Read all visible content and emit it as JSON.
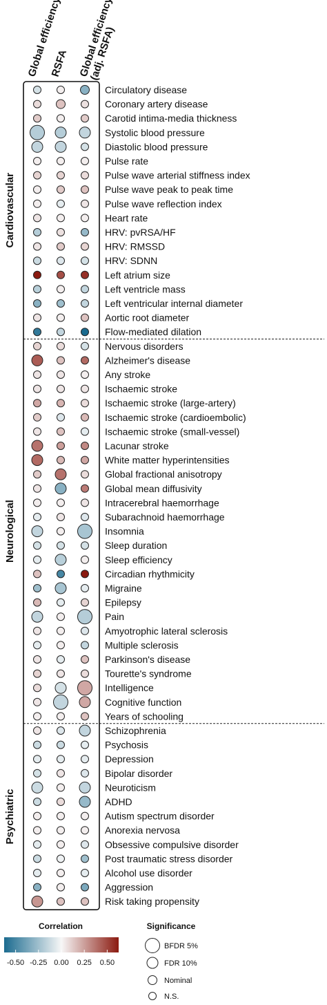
{
  "chart_data": {
    "type": "bubble-heatmap",
    "columns": [
      "Global efficiency",
      "RSFA",
      "Global efficiency\n(adj. RSFA)"
    ],
    "groups": [
      {
        "name": "Cardiovascular",
        "rows": [
          {
            "label": "Circulatory disease",
            "values": [
              -0.08,
              0.02,
              -0.25
            ],
            "sig": [
              0,
              0,
              1
            ]
          },
          {
            "label": "Coronary artery disease",
            "values": [
              0.06,
              0.12,
              0.05
            ],
            "sig": [
              0,
              1,
              0
            ]
          },
          {
            "label": "Carotid intima-media thickness",
            "values": [
              0.1,
              0.02,
              0.1
            ],
            "sig": [
              0,
              0,
              0
            ]
          },
          {
            "label": "Systolic blood pressure",
            "values": [
              -0.15,
              -0.15,
              -0.12
            ],
            "sig": [
              3,
              2,
              2
            ]
          },
          {
            "label": "Diastolic blood pressure",
            "values": [
              -0.12,
              -0.12,
              -0.08
            ],
            "sig": [
              2,
              2,
              0
            ]
          },
          {
            "label": "Pulse rate",
            "values": [
              0.02,
              0.02,
              0.02
            ],
            "sig": [
              0,
              0,
              0
            ]
          },
          {
            "label": "Pulse wave arterial stiffness index",
            "values": [
              0.08,
              0.08,
              0.06
            ],
            "sig": [
              0,
              0,
              0
            ]
          },
          {
            "label": "Pulse wave peak to peak time",
            "values": [
              0.02,
              0.1,
              0.12
            ],
            "sig": [
              0,
              0,
              0
            ]
          },
          {
            "label": "Pulse wave reflection index",
            "values": [
              0.02,
              -0.04,
              0.04
            ],
            "sig": [
              0,
              0,
              0
            ]
          },
          {
            "label": "Heart rate",
            "values": [
              0.04,
              0.02,
              0.02
            ],
            "sig": [
              0,
              0,
              0
            ]
          },
          {
            "label": "HRV: pvRSA/HF",
            "values": [
              -0.15,
              0.05,
              -0.22
            ],
            "sig": [
              0,
              0,
              0
            ]
          },
          {
            "label": "HRV: RMSSD",
            "values": [
              0.04,
              0.1,
              0.08
            ],
            "sig": [
              0,
              0,
              0
            ]
          },
          {
            "label": "HRV: SDNN",
            "values": [
              -0.1,
              -0.06,
              -0.08
            ],
            "sig": [
              0,
              0,
              0
            ]
          },
          {
            "label": "Left atrium size",
            "values": [
              0.5,
              0.38,
              0.45
            ],
            "sig": [
              0,
              0,
              0
            ]
          },
          {
            "label": "Left ventricle mass",
            "values": [
              -0.14,
              0.02,
              -0.12
            ],
            "sig": [
              0,
              0,
              0
            ]
          },
          {
            "label": "Left ventricular internal diameter",
            "values": [
              -0.25,
              -0.2,
              -0.12
            ],
            "sig": [
              0,
              0,
              0
            ]
          },
          {
            "label": "Aortic root diameter",
            "values": [
              0.04,
              0.02,
              0.12
            ],
            "sig": [
              0,
              0,
              0
            ]
          },
          {
            "label": "Flow-mediated dilation",
            "values": [
              -0.45,
              -0.12,
              -0.55
            ],
            "sig": [
              0,
              0,
              0
            ]
          }
        ]
      },
      {
        "name": "Neurological",
        "rows": [
          {
            "label": "Nervous disorders",
            "values": [
              0.08,
              0.06,
              -0.08
            ],
            "sig": [
              0,
              0,
              0
            ]
          },
          {
            "label": "Alzheimer's disease",
            "values": [
              0.35,
              0.12,
              0.32
            ],
            "sig": [
              2,
              0,
              0
            ]
          },
          {
            "label": "Any stroke",
            "values": [
              0.04,
              0.04,
              0.02
            ],
            "sig": [
              0,
              0,
              0
            ]
          },
          {
            "label": "Ischaemic stroke",
            "values": [
              0.04,
              0.04,
              0.04
            ],
            "sig": [
              0,
              0,
              0
            ]
          },
          {
            "label": "Ischaemic stroke (large-artery)",
            "values": [
              0.18,
              0.15,
              0.06
            ],
            "sig": [
              0,
              0,
              0
            ]
          },
          {
            "label": "Ischaemic stroke (cardioembolic)",
            "values": [
              0.1,
              -0.06,
              0.14
            ],
            "sig": [
              0,
              0,
              0
            ]
          },
          {
            "label": "Ischaemic stroke (small-vessel)",
            "values": [
              0.04,
              0.12,
              -0.04
            ],
            "sig": [
              0,
              0,
              0
            ]
          },
          {
            "label": "Lacunar stroke",
            "values": [
              0.3,
              0.2,
              0.25
            ],
            "sig": [
              2,
              0,
              0
            ]
          },
          {
            "label": "White matter hyperintensities",
            "values": [
              0.32,
              0.14,
              0.18
            ],
            "sig": [
              2,
              0,
              0
            ]
          },
          {
            "label": "Global fractional anisotropy",
            "values": [
              0.1,
              0.3,
              0.06
            ],
            "sig": [
              0,
              2,
              0
            ]
          },
          {
            "label": "Global mean diffusivity",
            "values": [
              0.04,
              -0.25,
              0.28
            ],
            "sig": [
              0,
              2,
              0
            ]
          },
          {
            "label": "Intracerebral haemorrhage",
            "values": [
              0.02,
              0.02,
              0.04
            ],
            "sig": [
              0,
              0,
              0
            ]
          },
          {
            "label": "Subarachnoid haemorrhage",
            "values": [
              -0.04,
              0.04,
              -0.06
            ],
            "sig": [
              0,
              0,
              0
            ]
          },
          {
            "label": "Insomnia",
            "values": [
              -0.12,
              0.02,
              -0.18
            ],
            "sig": [
              2,
              0,
              3
            ]
          },
          {
            "label": "Sleep duration",
            "values": [
              -0.08,
              -0.08,
              -0.08
            ],
            "sig": [
              0,
              0,
              0
            ]
          },
          {
            "label": "Sleep efficiency",
            "values": [
              -0.04,
              -0.14,
              0.02
            ],
            "sig": [
              0,
              2,
              0
            ]
          },
          {
            "label": "Circadian rhythmicity",
            "values": [
              0.12,
              -0.4,
              0.52
            ],
            "sig": [
              0,
              0,
              0
            ]
          },
          {
            "label": "Migraine",
            "values": [
              -0.2,
              -0.18,
              -0.04
            ],
            "sig": [
              0,
              2,
              0
            ]
          },
          {
            "label": "Epilepsy",
            "values": [
              0.14,
              -0.04,
              0.08
            ],
            "sig": [
              0,
              0,
              0
            ]
          },
          {
            "label": "Pain",
            "values": [
              -0.12,
              0.02,
              -0.15
            ],
            "sig": [
              2,
              0,
              3
            ]
          },
          {
            "label": "Amyotrophic lateral sclerosis",
            "values": [
              0.04,
              0.02,
              -0.06
            ],
            "sig": [
              0,
              0,
              0
            ]
          },
          {
            "label": "Multiple sclerosis",
            "values": [
              -0.04,
              0.02,
              -0.12
            ],
            "sig": [
              0,
              0,
              0
            ]
          },
          {
            "label": "Parkinson's disease",
            "values": [
              0.04,
              -0.04,
              0.12
            ],
            "sig": [
              0,
              0,
              0
            ]
          },
          {
            "label": "Tourette's syndrome",
            "values": [
              0.08,
              0.04,
              0.06
            ],
            "sig": [
              0,
              0,
              0
            ]
          },
          {
            "label": "Intelligence",
            "values": [
              0.06,
              -0.08,
              0.18
            ],
            "sig": [
              0,
              2,
              3
            ]
          },
          {
            "label": "Cognitive function",
            "values": [
              0.04,
              -0.12,
              0.18
            ],
            "sig": [
              0,
              3,
              2
            ]
          },
          {
            "label": "Years of schooling",
            "values": [
              0.02,
              0.02,
              0.12
            ],
            "sig": [
              0,
              0,
              0
            ]
          }
        ]
      },
      {
        "name": "Psychiatric",
        "rows": [
          {
            "label": "Schizophrenia",
            "values": [
              0.04,
              -0.06,
              -0.12
            ],
            "sig": [
              0,
              0,
              2
            ]
          },
          {
            "label": "Psychosis",
            "values": [
              -0.1,
              -0.1,
              -0.04
            ],
            "sig": [
              0,
              0,
              0
            ]
          },
          {
            "label": "Depression",
            "values": [
              -0.04,
              -0.04,
              -0.04
            ],
            "sig": [
              0,
              0,
              0
            ]
          },
          {
            "label": "Bipolar disorder",
            "values": [
              -0.08,
              0.04,
              -0.06
            ],
            "sig": [
              0,
              0,
              0
            ]
          },
          {
            "label": "Neuroticism",
            "values": [
              -0.1,
              0.02,
              -0.12
            ],
            "sig": [
              2,
              0,
              2
            ]
          },
          {
            "label": "ADHD",
            "values": [
              -0.1,
              0.06,
              -0.22
            ],
            "sig": [
              0,
              0,
              2
            ]
          },
          {
            "label": "Autism spectrum disorder",
            "values": [
              0.02,
              0.02,
              0.02
            ],
            "sig": [
              0,
              0,
              0
            ]
          },
          {
            "label": "Anorexia nervosa",
            "values": [
              0.02,
              0.02,
              0.02
            ],
            "sig": [
              0,
              0,
              0
            ]
          },
          {
            "label": "Obsessive compulsive disorder",
            "values": [
              -0.04,
              0.02,
              -0.06
            ],
            "sig": [
              0,
              0,
              0
            ]
          },
          {
            "label": "Post traumatic stress disorder",
            "values": [
              -0.1,
              -0.02,
              -0.2
            ],
            "sig": [
              0,
              0,
              0
            ]
          },
          {
            "label": "Alcohol use disorder",
            "values": [
              -0.04,
              0.02,
              -0.04
            ],
            "sig": [
              0,
              0,
              0
            ]
          },
          {
            "label": "Aggression",
            "values": [
              -0.25,
              0.02,
              -0.28
            ],
            "sig": [
              0,
              0,
              0
            ]
          },
          {
            "label": "Risk taking propensity",
            "values": [
              0.22,
              0.12,
              0.12
            ],
            "sig": [
              2,
              0,
              0
            ]
          }
        ]
      }
    ],
    "legend": {
      "color_title": "Correlation",
      "color_ticks": [
        "-0.50",
        "-0.25",
        "0.00",
        "0.25",
        "0.50"
      ],
      "color_range": [
        -0.5,
        0.5
      ],
      "colors": {
        "negative": "#1b6b8f",
        "neutral": "#f7f7f7",
        "positive": "#8b1a10"
      },
      "size_title": "Significance",
      "size_levels": [
        "BFDR 5%",
        "FDR 10%",
        "Nominal",
        "N.S."
      ]
    }
  }
}
